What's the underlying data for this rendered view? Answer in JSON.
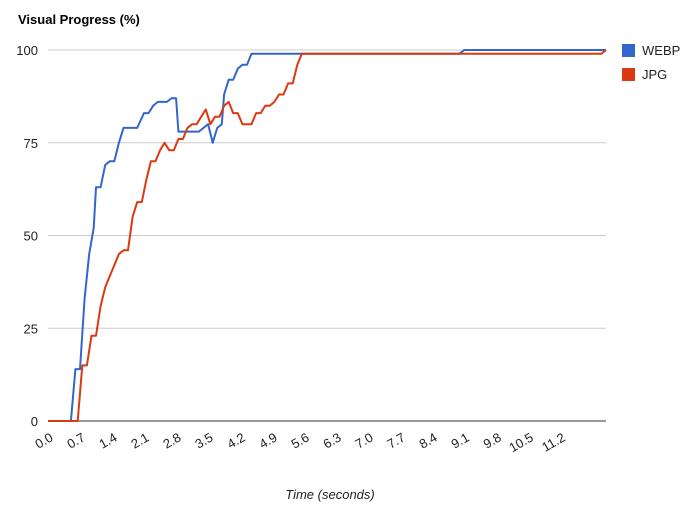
{
  "chart_data": {
    "type": "line",
    "title": "Visual Progress (%)",
    "xlabel": "Time (seconds)",
    "ylabel": "",
    "xlim": [
      0,
      12.2
    ],
    "ylim": [
      0,
      100
    ],
    "x_ticks": [
      "0.0",
      "0.7",
      "1.4",
      "2.1",
      "2.8",
      "3.5",
      "4.2",
      "4.9",
      "5.6",
      "6.3",
      "7.0",
      "7.7",
      "8.4",
      "9.1",
      "9.8",
      "10.5",
      "11.2"
    ],
    "y_ticks": [
      "0",
      "25",
      "50",
      "75",
      "100"
    ],
    "grid": true,
    "legend_position": "right",
    "series": [
      {
        "name": "WEBP",
        "color": "#3366cc",
        "points": [
          [
            0,
            0
          ],
          [
            0.5,
            0
          ],
          [
            0.6,
            14
          ],
          [
            0.7,
            14
          ],
          [
            0.8,
            33
          ],
          [
            0.9,
            45
          ],
          [
            1.0,
            52
          ],
          [
            1.05,
            63
          ],
          [
            1.15,
            63
          ],
          [
            1.25,
            69
          ],
          [
            1.35,
            70
          ],
          [
            1.45,
            70
          ],
          [
            1.55,
            75
          ],
          [
            1.65,
            79
          ],
          [
            1.95,
            79
          ],
          [
            2.1,
            83
          ],
          [
            2.2,
            83
          ],
          [
            2.3,
            85
          ],
          [
            2.4,
            86
          ],
          [
            2.6,
            86
          ],
          [
            2.7,
            87
          ],
          [
            2.8,
            87
          ],
          [
            2.85,
            78
          ],
          [
            3.3,
            78
          ],
          [
            3.5,
            80
          ],
          [
            3.6,
            75
          ],
          [
            3.7,
            79
          ],
          [
            3.8,
            80
          ],
          [
            3.85,
            88
          ],
          [
            3.95,
            92
          ],
          [
            4.05,
            92
          ],
          [
            4.15,
            95
          ],
          [
            4.25,
            96
          ],
          [
            4.35,
            96
          ],
          [
            4.45,
            99
          ],
          [
            9.0,
            99
          ],
          [
            9.1,
            100
          ],
          [
            12.2,
            100
          ]
        ]
      },
      {
        "name": "JPG",
        "color": "#dc3912",
        "points": [
          [
            0,
            0
          ],
          [
            0.65,
            0
          ],
          [
            0.75,
            15
          ],
          [
            0.85,
            15
          ],
          [
            0.95,
            23
          ],
          [
            1.05,
            23
          ],
          [
            1.15,
            31
          ],
          [
            1.25,
            36
          ],
          [
            1.35,
            39
          ],
          [
            1.45,
            42
          ],
          [
            1.55,
            45
          ],
          [
            1.65,
            46
          ],
          [
            1.75,
            46
          ],
          [
            1.85,
            55
          ],
          [
            1.95,
            59
          ],
          [
            2.05,
            59
          ],
          [
            2.15,
            65
          ],
          [
            2.25,
            70
          ],
          [
            2.35,
            70
          ],
          [
            2.45,
            73
          ],
          [
            2.55,
            75
          ],
          [
            2.65,
            73
          ],
          [
            2.75,
            73
          ],
          [
            2.85,
            76
          ],
          [
            2.95,
            76
          ],
          [
            3.05,
            79
          ],
          [
            3.15,
            80
          ],
          [
            3.25,
            80
          ],
          [
            3.35,
            82
          ],
          [
            3.45,
            84
          ],
          [
            3.55,
            80
          ],
          [
            3.65,
            82
          ],
          [
            3.75,
            82
          ],
          [
            3.85,
            85
          ],
          [
            3.95,
            86
          ],
          [
            4.05,
            83
          ],
          [
            4.15,
            83
          ],
          [
            4.25,
            80
          ],
          [
            4.35,
            80
          ],
          [
            4.45,
            80
          ],
          [
            4.55,
            83
          ],
          [
            4.65,
            83
          ],
          [
            4.75,
            85
          ],
          [
            4.85,
            85
          ],
          [
            4.95,
            86
          ],
          [
            5.05,
            88
          ],
          [
            5.15,
            88
          ],
          [
            5.25,
            91
          ],
          [
            5.35,
            91
          ],
          [
            5.45,
            96
          ],
          [
            5.55,
            99
          ],
          [
            12.1,
            99
          ],
          [
            12.2,
            100
          ]
        ]
      }
    ]
  }
}
